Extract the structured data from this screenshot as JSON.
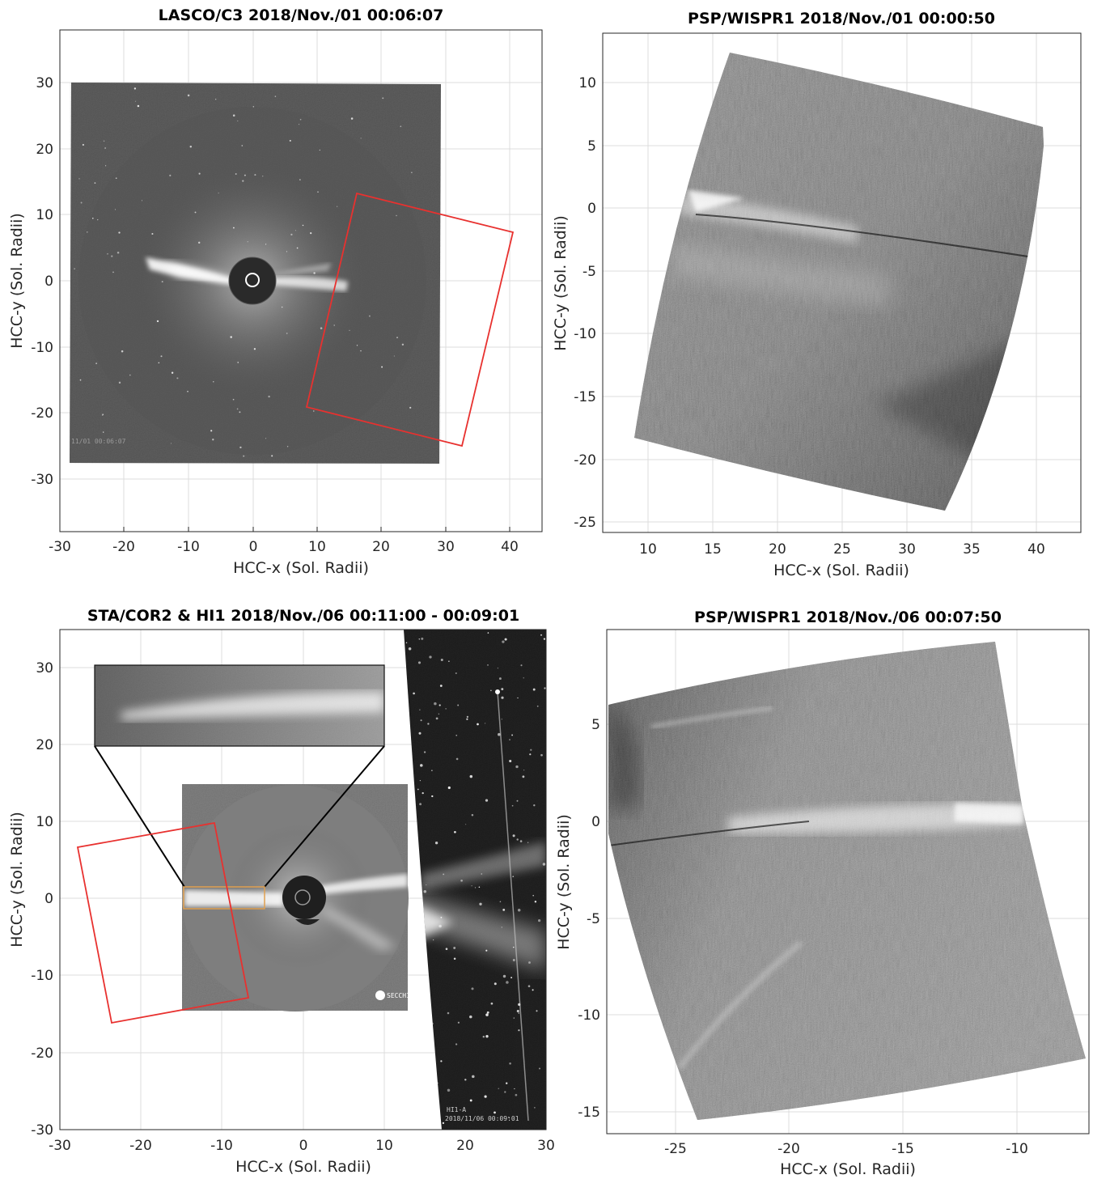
{
  "figure": {
    "panels": [
      {
        "id": "lasco-c3",
        "title": "LASCO/C3 2018/Nov./01 00:06:07",
        "xlabel": "HCC-x (Sol. Radii)",
        "ylabel": "HCC-y (Sol. Radii)",
        "xticks": [
          "-30",
          "-20",
          "-10",
          "0",
          "10",
          "20",
          "30",
          "40"
        ],
        "yticks": [
          "30",
          "20",
          "10",
          "0",
          "-10",
          "-20",
          "-30"
        ],
        "grid": true,
        "overlay": "red rectangle marking WISPR-I field of view"
      },
      {
        "id": "wispr-1",
        "title": "PSP/WISPR1 2018/Nov./01 00:00:50",
        "xlabel": "HCC-x (Sol. Radii)",
        "ylabel": "HCC-y (Sol. Radii)",
        "xticks": [
          "10",
          "15",
          "20",
          "25",
          "30",
          "35",
          "40"
        ],
        "yticks": [
          "10",
          "5",
          "0",
          "-5",
          "-10",
          "-15",
          "-20",
          "-25"
        ],
        "grid": true
      },
      {
        "id": "sta-cor2-hi1",
        "title": "STA/COR2 & HI1 2018/Nov./06 00:11:00 - 00:09:01",
        "xlabel": "HCC-x (Sol. Radii)",
        "ylabel": "HCC-y (Sol. Radii)",
        "xticks": [
          "-30",
          "-20",
          "-10",
          "0",
          "10",
          "20",
          "30"
        ],
        "yticks": [
          "30",
          "20",
          "10",
          "0",
          "-10",
          "-20",
          "-30"
        ],
        "grid": true,
        "overlay": "red rectangle, orange zoom box and black connector lines to inset",
        "hi1_label": "HI1-A",
        "hi1_timestamp": "2018/11/06 00:09:01",
        "secchi_logo": "SECCHI"
      },
      {
        "id": "wispr-2",
        "title": "PSP/WISPR1 2018/Nov./06 00:07:50",
        "xlabel": "HCC-x (Sol. Radii)",
        "ylabel": "HCC-y (Sol. Radii)",
        "xticks": [
          "-25",
          "-20",
          "-15",
          "-10"
        ],
        "yticks": [
          "5",
          "0",
          "-5",
          "-10",
          "-15"
        ],
        "grid": true
      }
    ],
    "colors": {
      "fov_box": "#e8312f",
      "zoom_box": "#e0a050",
      "grid": "#d9d9d9",
      "axis": "#262626"
    }
  }
}
